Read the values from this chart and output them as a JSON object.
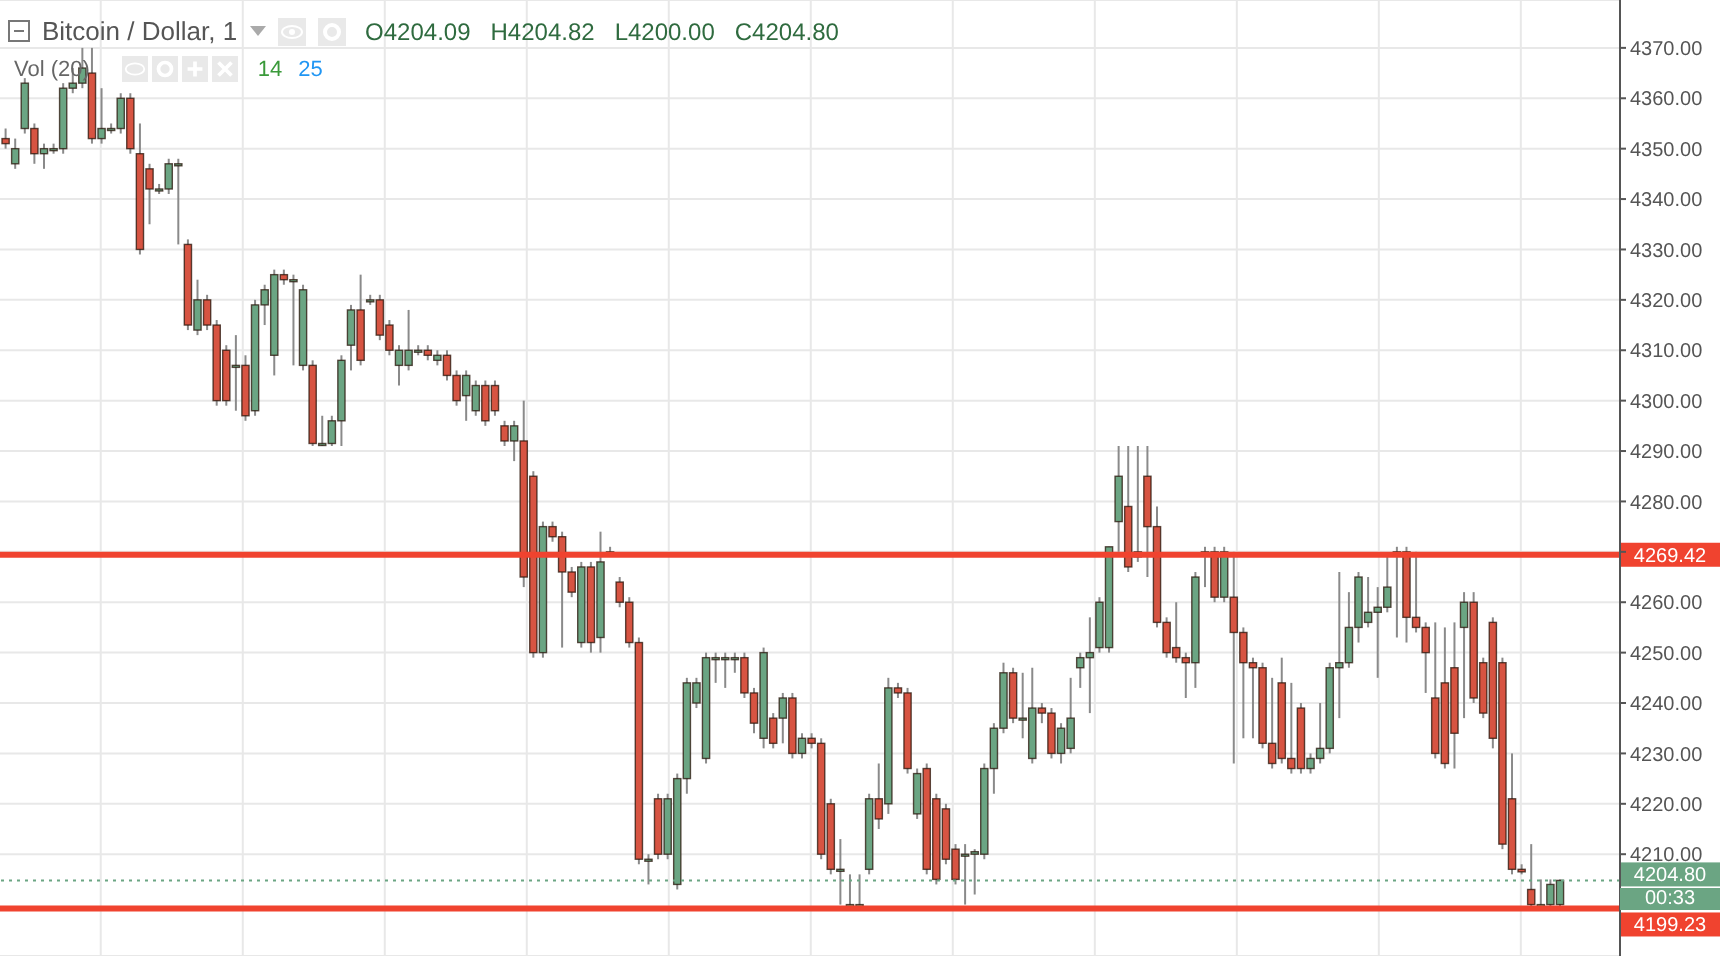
{
  "chart_data": {
    "type": "candlestick",
    "title": "Bitcoin / Dollar, 1",
    "annotations": [
      "O4204.09",
      "H4204.82",
      "L4200.00",
      "C4204.80",
      "Vol (20)",
      "14",
      "25",
      "00:33"
    ],
    "categories": [
      null,
      null,
      null,
      null,
      null,
      null,
      null,
      null,
      null,
      null,
      null,
      null,
      null,
      null,
      null,
      null,
      null,
      null,
      null,
      null,
      null,
      null,
      null,
      null,
      null,
      null,
      null,
      null,
      null,
      null,
      null,
      null,
      null,
      null,
      null,
      null,
      null,
      null,
      null,
      null,
      null,
      null,
      null,
      null,
      null,
      null,
      null,
      null,
      null,
      null,
      null,
      null,
      null,
      null,
      null,
      null,
      null,
      null,
      null,
      null,
      null,
      null,
      null,
      null,
      null,
      null,
      null,
      null,
      null,
      null,
      null,
      null,
      null,
      null,
      null,
      null,
      null,
      null,
      null,
      null,
      null,
      null,
      null,
      null,
      null,
      null,
      null,
      null,
      null,
      null,
      null,
      null,
      null,
      null,
      null,
      null,
      null,
      null,
      null,
      null,
      null,
      null,
      null,
      null,
      null,
      null,
      null,
      null,
      null,
      null,
      null,
      null,
      null,
      null,
      null,
      null,
      null,
      null,
      null,
      null,
      null,
      null,
      null,
      null,
      null,
      null,
      null,
      null,
      null,
      null,
      null,
      null,
      null,
      null,
      null,
      null,
      null,
      null,
      null,
      null,
      null,
      null,
      null,
      null,
      null,
      null,
      null,
      null,
      null,
      null,
      null,
      null,
      null,
      null,
      null,
      null,
      null,
      null,
      null,
      null,
      null,
      null,
      null
    ],
    "ohlc": [
      [
        4352,
        4354,
        4350,
        4351
      ],
      [
        4347,
        4352,
        4346,
        4350
      ],
      [
        4354,
        4364,
        4353,
        4363
      ],
      [
        4354,
        4355,
        4347,
        4349
      ],
      [
        4349,
        4351,
        4346,
        4350
      ],
      [
        4350,
        4351,
        4349,
        4350
      ],
      [
        4350,
        4363,
        4349,
        4362
      ],
      [
        4362,
        4366,
        4361,
        4363
      ],
      [
        4363,
        4370,
        4362,
        4366
      ],
      [
        4365,
        4370,
        4351,
        4352
      ],
      [
        4352,
        4362,
        4351,
        4354
      ],
      [
        4354,
        4355,
        4353,
        4354
      ],
      [
        4354,
        4361,
        4353,
        4360
      ],
      [
        4360,
        4361,
        4349,
        4350
      ],
      [
        4349,
        4355,
        4329,
        4330
      ],
      [
        4346,
        4347,
        4335,
        4342
      ],
      [
        4342,
        4343,
        4341,
        4342
      ],
      [
        4342,
        4348,
        4341,
        4347
      ],
      [
        4347,
        4348,
        4331,
        4347
      ],
      [
        4331,
        4332,
        4314,
        4315
      ],
      [
        4314,
        4324,
        4313,
        4320
      ],
      [
        4320,
        4321,
        4314,
        4315
      ],
      [
        4315,
        4316,
        4299,
        4300
      ],
      [
        4310,
        4311,
        4299,
        4300
      ],
      [
        4307,
        4313,
        4298,
        4307
      ],
      [
        4307,
        4309,
        4296,
        4297
      ],
      [
        4298,
        4320,
        4297,
        4319
      ],
      [
        4319,
        4323,
        4315,
        4322
      ],
      [
        4309,
        4326,
        4305,
        4325
      ],
      [
        4325,
        4326,
        4323,
        4324
      ],
      [
        4324,
        4325,
        4307,
        4324
      ],
      [
        4307,
        4323,
        4306,
        4322
      ],
      [
        4307,
        4308,
        4291,
        4291.5
      ],
      [
        4291.5,
        4297,
        4291,
        4291.5
      ],
      [
        4291.5,
        4297,
        4291,
        4296
      ],
      [
        4296,
        4309,
        4291,
        4308
      ],
      [
        4311,
        4319,
        4306,
        4318
      ],
      [
        4318,
        4325,
        4307,
        4308
      ],
      [
        4320,
        4321,
        4319,
        4320
      ],
      [
        4320,
        4321,
        4312,
        4313
      ],
      [
        4315,
        4316,
        4309,
        4310
      ],
      [
        4307,
        4311,
        4303,
        4310
      ],
      [
        4307,
        4318,
        4306,
        4310
      ],
      [
        4310,
        4311,
        4309,
        4310
      ],
      [
        4310,
        4311,
        4308,
        4309
      ],
      [
        4308,
        4310,
        4307,
        4309
      ],
      [
        4309,
        4310,
        4304,
        4305
      ],
      [
        4305,
        4306,
        4299,
        4300
      ],
      [
        4301,
        4306,
        4296,
        4305
      ],
      [
        4298,
        4304,
        4297,
        4303
      ],
      [
        4303,
        4304,
        4295,
        4296
      ],
      [
        4303,
        4304,
        4297,
        4298
      ],
      [
        4295,
        4296,
        4291,
        4292
      ],
      [
        4292,
        4296,
        4288,
        4295
      ],
      [
        4292,
        4300,
        4263,
        4265
      ],
      [
        4285,
        4286,
        4249,
        4250
      ],
      [
        4250,
        4276,
        4249,
        4275
      ],
      [
        4275,
        4276,
        4272,
        4273
      ],
      [
        4273,
        4274,
        4251,
        4266
      ],
      [
        4266,
        4267,
        4261,
        4262
      ],
      [
        4252,
        4268,
        4251,
        4267
      ],
      [
        4267,
        4268,
        4250,
        4252
      ],
      [
        4253,
        4274,
        4250,
        4268
      ],
      [
        4270,
        4271,
        4269,
        4270
      ],
      [
        4264,
        4265,
        4259,
        4260
      ],
      [
        4260,
        4261,
        4251,
        4252
      ],
      [
        4252,
        4253,
        4208,
        4209
      ],
      [
        4209,
        4210,
        4204,
        4209
      ],
      [
        4221,
        4222,
        4209,
        4210
      ],
      [
        4210,
        4222,
        4209,
        4221
      ],
      [
        4204,
        4226,
        4203,
        4225
      ],
      [
        4225,
        4245,
        4222,
        4244
      ],
      [
        4240,
        4245,
        4239,
        4244
      ],
      [
        4229,
        4250,
        4228,
        4249
      ],
      [
        4249,
        4250,
        4244,
        4249
      ],
      [
        4249,
        4250,
        4243,
        4249
      ],
      [
        4249,
        4250,
        4246,
        4249
      ],
      [
        4249,
        4250,
        4241,
        4242
      ],
      [
        4242,
        4243,
        4234,
        4236
      ],
      [
        4233,
        4251,
        4231,
        4250
      ],
      [
        4237,
        4238,
        4231,
        4232
      ],
      [
        4237,
        4242,
        4232,
        4241
      ],
      [
        4241,
        4242,
        4229,
        4230
      ],
      [
        4230,
        4234,
        4229,
        4233
      ],
      [
        4233,
        4234,
        4231,
        4232
      ],
      [
        4232,
        4233,
        4209,
        4210
      ],
      [
        4220,
        4221,
        4206,
        4207
      ],
      [
        4207,
        4213,
        4200,
        4207
      ],
      [
        4200,
        4206,
        4199.5,
        4200
      ],
      [
        4200,
        4206,
        4199.5,
        4200
      ],
      [
        4207,
        4222,
        4206,
        4221
      ],
      [
        4221,
        4228,
        4215,
        4217
      ],
      [
        4220,
        4245,
        4218,
        4243
      ],
      [
        4243,
        4244,
        4241,
        4242
      ],
      [
        4242,
        4243,
        4226,
        4227
      ],
      [
        4218,
        4227,
        4217,
        4226
      ],
      [
        4227,
        4228,
        4206,
        4207
      ],
      [
        4221,
        4222,
        4204,
        4205
      ],
      [
        4219,
        4220,
        4208,
        4209
      ],
      [
        4211,
        4212,
        4204,
        4205
      ],
      [
        4210,
        4212,
        4200,
        4210
      ],
      [
        4210,
        4211,
        4202,
        4210.5
      ],
      [
        4210,
        4228,
        4209,
        4227
      ],
      [
        4227,
        4236,
        4222,
        4235
      ],
      [
        4235,
        4248,
        4234,
        4246
      ],
      [
        4246,
        4247,
        4236,
        4237
      ],
      [
        4237,
        4246,
        4233,
        4237
      ],
      [
        4229,
        4247,
        4228,
        4239
      ],
      [
        4239,
        4240,
        4236,
        4238
      ],
      [
        4238,
        4239,
        4229,
        4230
      ],
      [
        4230,
        4236,
        4228,
        4235
      ],
      [
        4231,
        4245,
        4230,
        4237
      ],
      [
        4247,
        4250,
        4243,
        4249
      ],
      [
        4249,
        4257,
        4238,
        4250
      ],
      [
        4251,
        4261,
        4250,
        4260
      ],
      [
        4251,
        4271,
        4250,
        4271
      ],
      [
        4276,
        4291,
        4270,
        4285
      ],
      [
        4279,
        4291,
        4266,
        4267
      ],
      [
        4269,
        4291,
        4268,
        4270
      ],
      [
        4285,
        4291,
        4265,
        4275
      ],
      [
        4275,
        4279,
        4255,
        4256
      ],
      [
        4256,
        4257,
        4249,
        4250
      ],
      [
        4251,
        4260,
        4248,
        4249
      ],
      [
        4249,
        4250,
        4241,
        4248
      ],
      [
        4248,
        4266,
        4243,
        4265
      ],
      [
        4270,
        4271,
        4263,
        4270
      ],
      [
        4270,
        4271,
        4260,
        4261
      ],
      [
        4261,
        4271,
        4260,
        4270
      ],
      [
        4261,
        4270,
        4228,
        4254
      ],
      [
        4254,
        4255,
        4233,
        4248
      ],
      [
        4248,
        4249,
        4233,
        4247
      ],
      [
        4247,
        4248,
        4231,
        4232
      ],
      [
        4232,
        4245,
        4227,
        4228
      ],
      [
        4244,
        4249,
        4228,
        4229
      ],
      [
        4229,
        4244,
        4226,
        4227
      ],
      [
        4239,
        4240,
        4226,
        4227
      ],
      [
        4227,
        4230,
        4226,
        4229
      ],
      [
        4229,
        4240,
        4228,
        4231
      ],
      [
        4231,
        4248,
        4230,
        4247
      ],
      [
        4247,
        4266,
        4237,
        4248
      ],
      [
        4248,
        4262,
        4247,
        4255
      ],
      [
        4255,
        4266,
        4252,
        4265
      ],
      [
        4256,
        4265,
        4255,
        4258
      ],
      [
        4258,
        4263,
        4245,
        4259
      ],
      [
        4259,
        4269,
        4258,
        4263
      ],
      [
        4270,
        4271,
        4253,
        4270
      ],
      [
        4270,
        4271,
        4252,
        4257
      ],
      [
        4257,
        4270,
        4254,
        4255
      ],
      [
        4255,
        4256,
        4242,
        4250
      ],
      [
        4241,
        4256,
        4229,
        4230
      ],
      [
        4244,
        4255,
        4227,
        4228
      ],
      [
        4247,
        4256,
        4227,
        4234
      ],
      [
        4255,
        4262,
        4237,
        4260
      ],
      [
        4260,
        4262,
        4240,
        4241
      ],
      [
        4248,
        4249,
        4237,
        4238
      ],
      [
        4256,
        4257,
        4231,
        4233
      ],
      [
        4248,
        4249,
        4211,
        4212
      ],
      [
        4221,
        4230,
        4206,
        4207
      ],
      [
        4207,
        4208,
        4206,
        4206.5
      ],
      [
        4203,
        4212,
        4199.5,
        4200
      ],
      [
        4200,
        4205,
        4199.5,
        4200
      ],
      [
        4200,
        4205,
        4199.5,
        4204
      ],
      [
        4200,
        4205,
        4199.5,
        4204.8
      ]
    ],
    "colors": [
      "#d75442",
      "#6ba583",
      "#6ba583",
      "#d75442",
      "#6ba583",
      "#6ba583",
      "#6ba583",
      "#6ba583",
      "#6ba583",
      "#d75442",
      "#6ba583",
      "#6ba583",
      "#6ba583",
      "#d75442",
      "#d75442",
      "#d75442",
      "#6ba583",
      "#6ba583",
      "#6ba583",
      "#d75442",
      "#6ba583",
      "#d75442",
      "#d75442",
      "#d75442",
      "#6ba583",
      "#d75442",
      "#6ba583",
      "#6ba583",
      "#6ba583",
      "#d75442",
      "#6ba583",
      "#6ba583",
      "#d75442",
      "#6ba583",
      "#6ba583",
      "#6ba583",
      "#6ba583",
      "#d75442",
      "#6ba583",
      "#d75442",
      "#d75442",
      "#6ba583",
      "#6ba583",
      "#6ba583",
      "#d75442",
      "#6ba583",
      "#d75442",
      "#d75442",
      "#6ba583",
      "#6ba583",
      "#d75442",
      "#d75442",
      "#d75442",
      "#6ba583",
      "#d75442",
      "#d75442",
      "#6ba583",
      "#d75442",
      "#d75442",
      "#d75442",
      "#6ba583",
      "#d75442",
      "#6ba583",
      "#6ba583",
      "#d75442",
      "#d75442",
      "#d75442",
      "#6ba583",
      "#d75442",
      "#6ba583",
      "#6ba583",
      "#6ba583",
      "#6ba583",
      "#6ba583",
      "#6ba583",
      "#6ba583",
      "#6ba583",
      "#d75442",
      "#d75442",
      "#6ba583",
      "#d75442",
      "#6ba583",
      "#d75442",
      "#6ba583",
      "#d75442",
      "#d75442",
      "#d75442",
      "#6ba583",
      "#6ba583",
      "#6ba583",
      "#6ba583",
      "#d75442",
      "#6ba583",
      "#d75442",
      "#d75442",
      "#6ba583",
      "#d75442",
      "#d75442",
      "#d75442",
      "#d75442",
      "#6ba583",
      "#6ba583",
      "#6ba583",
      "#6ba583",
      "#6ba583",
      "#d75442",
      "#6ba583",
      "#6ba583",
      "#d75442",
      "#d75442",
      "#6ba583",
      "#6ba583",
      "#6ba583",
      "#6ba583",
      "#6ba583",
      "#6ba583",
      "#6ba583",
      "#d75442",
      "#6ba583",
      "#d75442",
      "#d75442",
      "#d75442",
      "#d75442",
      "#d75442",
      "#6ba583",
      "#6ba583",
      "#d75442",
      "#6ba583",
      "#d75442",
      "#d75442",
      "#d75442",
      "#d75442",
      "#d75442",
      "#d75442",
      "#d75442",
      "#d75442",
      "#6ba583",
      "#6ba583",
      "#6ba583",
      "#6ba583",
      "#6ba583",
      "#6ba583",
      "#6ba583",
      "#6ba583",
      "#6ba583",
      "#6ba583",
      "#d75442",
      "#d75442",
      "#d75442",
      "#d75442",
      "#d75442",
      "#d75442",
      "#6ba583",
      "#d75442",
      "#d75442",
      "#d75442",
      "#d75442",
      "#d75442",
      "#d75442",
      "#d75442",
      "#6ba583",
      "#6ba583",
      "#6ba583"
    ],
    "ylim": [
      4189.8,
      4379.5
    ],
    "yticks": [
      {
        "value": 4210,
        "label": "4210.00"
      },
      {
        "value": 4220,
        "label": "4220.00"
      },
      {
        "value": 4230,
        "label": "4230.00"
      },
      {
        "value": 4240,
        "label": "4240.00"
      },
      {
        "value": 4250,
        "label": "4250.00"
      },
      {
        "value": 4260,
        "label": "4260.00"
      },
      {
        "value": 4270,
        "label": null
      },
      {
        "value": 4280,
        "label": "4280.00"
      },
      {
        "value": 4290,
        "label": "4290.00"
      },
      {
        "value": 4300,
        "label": "4300.00"
      },
      {
        "value": 4310,
        "label": "4310.00"
      },
      {
        "value": 4320,
        "label": "4320.00"
      },
      {
        "value": 4330,
        "label": "4330.00"
      },
      {
        "value": 4340,
        "label": "4340.00"
      },
      {
        "value": 4350,
        "label": "4350.00"
      },
      {
        "value": 4360,
        "label": "4360.00"
      },
      {
        "value": 4370,
        "label": "4370.00"
      }
    ],
    "ref_lines": [
      {
        "axis": "y",
        "value": 4269.42,
        "label": "4269.42",
        "color": "#f0432f"
      },
      {
        "axis": "y",
        "value": 4204.8,
        "label": "4204.80",
        "color": "#6ba583",
        "line_style": "dotted"
      },
      {
        "axis": "y",
        "value": 4199.23,
        "label": "4199.23",
        "color": "#f0432f"
      }
    ],
    "grid": true
  }
}
